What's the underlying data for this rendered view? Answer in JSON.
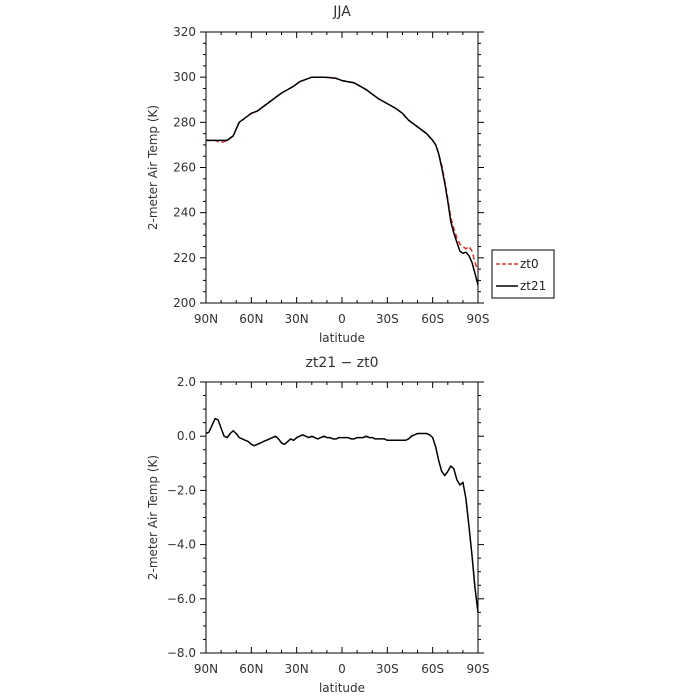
{
  "chart_data": [
    {
      "type": "line",
      "title": "JJA",
      "xlabel": "latitude",
      "ylabel": "2-meter Air Temp (K)",
      "xlim": [
        90,
        -90
      ],
      "ylim": [
        200,
        320
      ],
      "xticks": [
        {
          "value": 90,
          "label": "90N"
        },
        {
          "value": 60,
          "label": "60N"
        },
        {
          "value": 30,
          "label": "30N"
        },
        {
          "value": 0,
          "label": "0"
        },
        {
          "value": -30,
          "label": "30S"
        },
        {
          "value": -60,
          "label": "60S"
        },
        {
          "value": -90,
          "label": "90S"
        }
      ],
      "yticks": [
        {
          "value": 200,
          "label": "200"
        },
        {
          "value": 220,
          "label": "220"
        },
        {
          "value": 240,
          "label": "240"
        },
        {
          "value": 260,
          "label": "260"
        },
        {
          "value": 280,
          "label": "280"
        },
        {
          "value": 300,
          "label": "300"
        },
        {
          "value": 320,
          "label": "320"
        }
      ],
      "legend": "right-bottom outside",
      "series": [
        {
          "name": "zt0",
          "color": "#e0302a",
          "dash": "dashed",
          "x": [
            90,
            87,
            84,
            80,
            76,
            72,
            68,
            64,
            60,
            56,
            52,
            48,
            44,
            40,
            36,
            32,
            28,
            24,
            20,
            16,
            12,
            8,
            4,
            0,
            -4,
            -8,
            -12,
            -16,
            -20,
            -24,
            -28,
            -32,
            -36,
            -40,
            -44,
            -48,
            -52,
            -56,
            -60,
            -62,
            -64,
            -66,
            -68,
            -70,
            -72,
            -74,
            -76,
            -78,
            -80,
            -82,
            -84,
            -86,
            -88,
            -90
          ],
          "values": [
            272,
            272,
            272,
            271,
            272,
            274,
            280,
            282,
            284,
            285,
            287,
            289,
            291,
            293,
            294.5,
            296,
            298,
            299,
            300,
            300,
            300,
            299.8,
            299.5,
            298.5,
            298,
            297.5,
            296,
            294.5,
            292.5,
            290.5,
            289,
            287.5,
            286,
            284,
            281,
            279,
            277,
            275,
            272,
            270,
            266,
            261,
            254,
            246,
            238,
            233,
            229,
            226,
            225,
            224,
            225,
            223,
            218,
            214
          ]
        },
        {
          "name": "zt21",
          "color": "#000000",
          "dash": "solid",
          "x": [
            90,
            87,
            84,
            80,
            76,
            72,
            68,
            64,
            60,
            56,
            52,
            48,
            44,
            40,
            36,
            32,
            28,
            24,
            20,
            16,
            12,
            8,
            4,
            0,
            -4,
            -8,
            -12,
            -16,
            -20,
            -24,
            -28,
            -32,
            -36,
            -40,
            -44,
            -48,
            -52,
            -56,
            -60,
            -62,
            -64,
            -66,
            -68,
            -70,
            -72,
            -74,
            -76,
            -78,
            -80,
            -82,
            -84,
            -86,
            -88,
            -90
          ],
          "values": [
            272,
            272,
            272,
            272,
            272,
            274,
            280,
            282,
            284,
            285,
            287,
            289,
            291,
            293,
            294.5,
            296,
            298,
            299,
            300,
            300,
            300,
            299.8,
            299.5,
            298.5,
            298,
            297.5,
            296,
            294.5,
            292.5,
            290.5,
            289,
            287.5,
            286,
            284,
            281,
            279,
            277,
            275,
            272,
            270,
            266,
            260,
            253,
            245,
            236,
            231,
            227,
            223,
            222,
            222.5,
            221,
            218,
            213,
            208
          ]
        }
      ]
    },
    {
      "type": "line",
      "title": "zt21 − zt0",
      "xlabel": "latitude",
      "ylabel": "2-meter Air Temp (K)",
      "xlim": [
        90,
        -90
      ],
      "ylim": [
        -8,
        2
      ],
      "xticks": [
        {
          "value": 90,
          "label": "90N"
        },
        {
          "value": 60,
          "label": "60N"
        },
        {
          "value": 30,
          "label": "30N"
        },
        {
          "value": 0,
          "label": "0"
        },
        {
          "value": -30,
          "label": "30S"
        },
        {
          "value": -60,
          "label": "60S"
        },
        {
          "value": -90,
          "label": "90S"
        }
      ],
      "yticks": [
        {
          "value": -8,
          "label": "−8.0"
        },
        {
          "value": -6,
          "label": "−6.0"
        },
        {
          "value": -4,
          "label": "−4.0"
        },
        {
          "value": -2,
          "label": "−2.0"
        },
        {
          "value": 0,
          "label": "0.0"
        },
        {
          "value": 2,
          "label": "2.0"
        }
      ],
      "series": [
        {
          "color": "#000000",
          "dash": "solid",
          "x": [
            90,
            88,
            86,
            84,
            82,
            80,
            78,
            76,
            74,
            72,
            70,
            68,
            66,
            64,
            62,
            60,
            58,
            56,
            54,
            52,
            50,
            48,
            46,
            44,
            42,
            40,
            38,
            36,
            34,
            32,
            30,
            28,
            26,
            24,
            22,
            20,
            18,
            16,
            14,
            12,
            10,
            8,
            6,
            4,
            2,
            0,
            -2,
            -4,
            -6,
            -8,
            -10,
            -12,
            -14,
            -16,
            -18,
            -20,
            -22,
            -24,
            -26,
            -28,
            -30,
            -32,
            -34,
            -36,
            -38,
            -40,
            -42,
            -44,
            -46,
            -48,
            -50,
            -52,
            -54,
            -56,
            -58,
            -60,
            -62,
            -64,
            -66,
            -68,
            -70,
            -72,
            -74,
            -76,
            -78,
            -80,
            -82,
            -84,
            -86,
            -88,
            -90
          ],
          "values": [
            0.1,
            0.15,
            0.4,
            0.65,
            0.6,
            0.3,
            0.0,
            -0.05,
            0.1,
            0.2,
            0.1,
            -0.05,
            -0.1,
            -0.15,
            -0.2,
            -0.3,
            -0.35,
            -0.3,
            -0.25,
            -0.2,
            -0.15,
            -0.1,
            -0.05,
            0.0,
            -0.1,
            -0.25,
            -0.3,
            -0.2,
            -0.1,
            -0.15,
            -0.05,
            0.0,
            0.05,
            0.0,
            -0.05,
            0.0,
            -0.05,
            -0.1,
            -0.05,
            0.0,
            -0.05,
            -0.05,
            -0.1,
            -0.1,
            -0.05,
            -0.05,
            -0.05,
            -0.05,
            -0.1,
            -0.1,
            -0.05,
            -0.05,
            -0.05,
            0.0,
            -0.05,
            -0.05,
            -0.1,
            -0.1,
            -0.1,
            -0.1,
            -0.15,
            -0.15,
            -0.15,
            -0.15,
            -0.15,
            -0.15,
            -0.15,
            -0.1,
            0.0,
            0.05,
            0.1,
            0.1,
            0.1,
            0.1,
            0.05,
            -0.05,
            -0.4,
            -0.9,
            -1.3,
            -1.45,
            -1.3,
            -1.1,
            -1.2,
            -1.6,
            -1.8,
            -1.7,
            -2.3,
            -3.3,
            -4.4,
            -5.6,
            -6.5
          ]
        }
      ]
    }
  ]
}
